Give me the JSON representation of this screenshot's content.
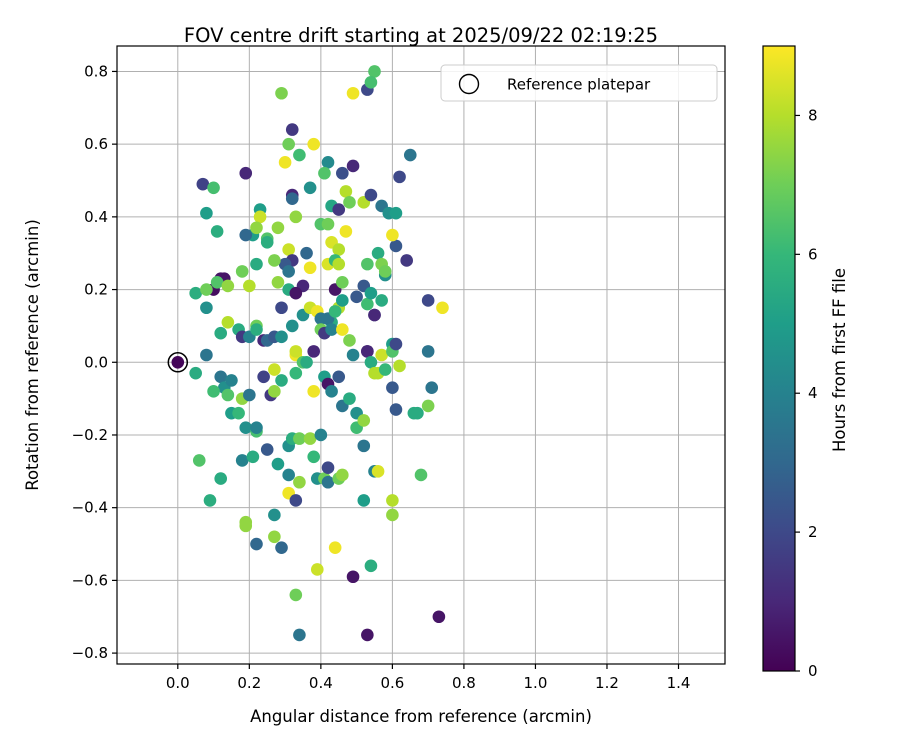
{
  "chart_data": {
    "type": "scatter",
    "title": "FOV centre drift starting at 2025/09/22 02:19:25",
    "xlabel": "Angular distance from reference (arcmin)",
    "ylabel": "Rotation from reference (arcmin)",
    "xlim": [
      -0.17,
      1.53
    ],
    "ylim": [
      -0.83,
      0.87
    ],
    "xticks": [
      0.0,
      0.2,
      0.4,
      0.6,
      0.8,
      1.0,
      1.2,
      1.4
    ],
    "xtick_labels": [
      "0.0",
      "0.2",
      "0.4",
      "0.6",
      "0.8",
      "1.0",
      "1.2",
      "1.4"
    ],
    "yticks": [
      -0.8,
      -0.6,
      -0.4,
      -0.2,
      0.0,
      0.2,
      0.4,
      0.6,
      0.8
    ],
    "ytick_labels": [
      "−0.8",
      "−0.6",
      "−0.4",
      "−0.2",
      "0.0",
      "0.2",
      "0.4",
      "0.6",
      "0.8"
    ],
    "grid": true,
    "legend": {
      "position": "upper-right",
      "entries": [
        "Reference platepar"
      ]
    },
    "reference_point": {
      "x": 0.0,
      "y": 0.0,
      "label": "Reference platepar"
    },
    "colorbar": {
      "label": "Hours from first FF file",
      "colormap": "viridis",
      "range": [
        0,
        9
      ],
      "ticks": [
        0,
        2,
        4,
        6,
        8
      ],
      "tick_labels": [
        "0",
        "2",
        "4",
        "6",
        "8"
      ]
    },
    "colormap_stops": [
      "#440154",
      "#482878",
      "#3e4989",
      "#31688e",
      "#26828e",
      "#1f9e89",
      "#35b779",
      "#6ece58",
      "#b5de2b",
      "#fde725"
    ],
    "points": [
      [
        0.0,
        0.0,
        0.1
      ],
      [
        0.1,
        0.2,
        0.3
      ],
      [
        0.12,
        0.23,
        0.5
      ],
      [
        0.19,
        0.52,
        1.0
      ],
      [
        0.07,
        0.49,
        1.8
      ],
      [
        0.32,
        0.64,
        1.5
      ],
      [
        0.29,
        0.74,
        7.2
      ],
      [
        0.53,
        0.75,
        2.0
      ],
      [
        0.55,
        0.8,
        6.5
      ],
      [
        0.54,
        0.77,
        6.3
      ],
      [
        0.49,
        0.74,
        8.8
      ],
      [
        0.31,
        0.6,
        7.0
      ],
      [
        0.34,
        0.57,
        6.2
      ],
      [
        0.38,
        0.6,
        8.8
      ],
      [
        0.3,
        0.55,
        8.8
      ],
      [
        0.42,
        0.55,
        4.3
      ],
      [
        0.49,
        0.54,
        1.0
      ],
      [
        0.65,
        0.57,
        3.5
      ],
      [
        0.62,
        0.51,
        2.0
      ],
      [
        0.46,
        0.52,
        2.2
      ],
      [
        0.41,
        0.52,
        6.5
      ],
      [
        0.37,
        0.48,
        4.5
      ],
      [
        0.1,
        0.48,
        6.3
      ],
      [
        0.08,
        0.41,
        5.0
      ],
      [
        0.11,
        0.36,
        5.6
      ],
      [
        0.23,
        0.42,
        5.0
      ],
      [
        0.23,
        0.4,
        8.3
      ],
      [
        0.32,
        0.46,
        1.0
      ],
      [
        0.32,
        0.45,
        3.0
      ],
      [
        0.33,
        0.4,
        7.5
      ],
      [
        0.43,
        0.43,
        5.3
      ],
      [
        0.45,
        0.42,
        1.5
      ],
      [
        0.47,
        0.47,
        8.0
      ],
      [
        0.48,
        0.44,
        7.0
      ],
      [
        0.52,
        0.44,
        8.0
      ],
      [
        0.54,
        0.46,
        2.0
      ],
      [
        0.57,
        0.43,
        3.5
      ],
      [
        0.59,
        0.41,
        4.5
      ],
      [
        0.61,
        0.41,
        5.0
      ],
      [
        0.61,
        0.32,
        2.5
      ],
      [
        0.6,
        0.35,
        8.8
      ],
      [
        0.58,
        0.24,
        4.5
      ],
      [
        0.21,
        0.35,
        5.0
      ],
      [
        0.19,
        0.35,
        3.0
      ],
      [
        0.22,
        0.37,
        7.5
      ],
      [
        0.25,
        0.34,
        6.5
      ],
      [
        0.28,
        0.37,
        7.5
      ],
      [
        0.25,
        0.33,
        5.6
      ],
      [
        0.31,
        0.31,
        8.3
      ],
      [
        0.32,
        0.28,
        1.5
      ],
      [
        0.3,
        0.27,
        2.5
      ],
      [
        0.31,
        0.25,
        3.5
      ],
      [
        0.36,
        0.3,
        3.0
      ],
      [
        0.37,
        0.26,
        8.8
      ],
      [
        0.4,
        0.38,
        6.5
      ],
      [
        0.42,
        0.38,
        7.0
      ],
      [
        0.43,
        0.33,
        8.5
      ],
      [
        0.45,
        0.31,
        8.0
      ],
      [
        0.47,
        0.36,
        8.8
      ],
      [
        0.42,
        0.27,
        8.5
      ],
      [
        0.44,
        0.28,
        6.0
      ],
      [
        0.45,
        0.27,
        8.0
      ],
      [
        0.53,
        0.27,
        6.5
      ],
      [
        0.56,
        0.3,
        5.5
      ],
      [
        0.57,
        0.27,
        7.2
      ],
      [
        0.58,
        0.25,
        7.0
      ],
      [
        0.64,
        0.28,
        1.5
      ],
      [
        0.35,
        0.21,
        1.0
      ],
      [
        0.05,
        0.19,
        5.6
      ],
      [
        0.08,
        0.2,
        7.0
      ],
      [
        0.13,
        0.23,
        0.5
      ],
      [
        0.11,
        0.22,
        6.5
      ],
      [
        0.14,
        0.21,
        7.5
      ],
      [
        0.18,
        0.25,
        7.0
      ],
      [
        0.2,
        0.21,
        8.0
      ],
      [
        0.22,
        0.27,
        5.5
      ],
      [
        0.27,
        0.28,
        7.2
      ],
      [
        0.28,
        0.22,
        7.5
      ],
      [
        0.31,
        0.2,
        5.5
      ],
      [
        0.29,
        0.15,
        2.0
      ],
      [
        0.33,
        0.19,
        0.5
      ],
      [
        0.35,
        0.13,
        4.5
      ],
      [
        0.37,
        0.15,
        8.3
      ],
      [
        0.39,
        0.14,
        8.8
      ],
      [
        0.4,
        0.12,
        3.5
      ],
      [
        0.42,
        0.12,
        4.0
      ],
      [
        0.43,
        0.11,
        5.5
      ],
      [
        0.44,
        0.2,
        0.5
      ],
      [
        0.45,
        0.15,
        8.0
      ],
      [
        0.46,
        0.22,
        7.0
      ],
      [
        0.46,
        0.17,
        5.0
      ],
      [
        0.5,
        0.18,
        2.5
      ],
      [
        0.52,
        0.21,
        2.5
      ],
      [
        0.53,
        0.16,
        6.2
      ],
      [
        0.54,
        0.19,
        5.0
      ],
      [
        0.55,
        0.13,
        2.0
      ],
      [
        0.55,
        0.13,
        1.0
      ],
      [
        0.57,
        0.17,
        5.5
      ],
      [
        0.7,
        0.17,
        2.0
      ],
      [
        0.74,
        0.15,
        8.8
      ],
      [
        0.08,
        0.15,
        4.5
      ],
      [
        0.12,
        0.08,
        5.5
      ],
      [
        0.14,
        0.11,
        8.0
      ],
      [
        0.17,
        0.09,
        5.5
      ],
      [
        0.18,
        0.07,
        1.5
      ],
      [
        0.2,
        0.07,
        4.0
      ],
      [
        0.22,
        0.1,
        7.0
      ],
      [
        0.22,
        0.09,
        5.6
      ],
      [
        0.24,
        0.06,
        1.0
      ],
      [
        0.25,
        0.06,
        3.0
      ],
      [
        0.27,
        0.07,
        2.5
      ],
      [
        0.29,
        0.07,
        4.5
      ],
      [
        0.32,
        0.1,
        4.5
      ],
      [
        0.33,
        0.02,
        8.8
      ],
      [
        0.33,
        0.03,
        8.3
      ],
      [
        0.35,
        0.0,
        6.5
      ],
      [
        0.38,
        0.03,
        1.0
      ],
      [
        0.4,
        0.09,
        7.0
      ],
      [
        0.41,
        0.08,
        1.5
      ],
      [
        0.42,
        0.12,
        3.5
      ],
      [
        0.43,
        0.09,
        4.0
      ],
      [
        0.44,
        0.14,
        6.0
      ],
      [
        0.46,
        0.09,
        8.8
      ],
      [
        0.48,
        0.06,
        7.2
      ],
      [
        0.49,
        0.02,
        4.0
      ],
      [
        0.53,
        0.03,
        1.0
      ],
      [
        0.53,
        0.03,
        1.0
      ],
      [
        0.54,
        0.0,
        5.5
      ],
      [
        0.57,
        0.02,
        8.3
      ],
      [
        0.6,
        0.05,
        5.0
      ],
      [
        0.6,
        0.03,
        6.5
      ],
      [
        0.61,
        0.05,
        2.0
      ],
      [
        0.7,
        0.03,
        3.5
      ],
      [
        0.08,
        0.02,
        3.5
      ],
      [
        0.05,
        -0.03,
        5.5
      ],
      [
        0.12,
        -0.04,
        3.5
      ],
      [
        0.13,
        -0.07,
        4.5
      ],
      [
        0.14,
        -0.09,
        6.5
      ],
      [
        0.15,
        -0.05,
        4.0
      ],
      [
        0.1,
        -0.08,
        6.2
      ],
      [
        0.15,
        -0.14,
        5.0
      ],
      [
        0.17,
        -0.14,
        6.0
      ],
      [
        0.18,
        -0.1,
        7.5
      ],
      [
        0.2,
        -0.09,
        3.5
      ],
      [
        0.19,
        -0.18,
        4.5
      ],
      [
        0.22,
        -0.19,
        6.3
      ],
      [
        0.22,
        -0.18,
        4.0
      ],
      [
        0.24,
        -0.04,
        1.8
      ],
      [
        0.26,
        -0.09,
        1.5
      ],
      [
        0.27,
        -0.08,
        7.5
      ],
      [
        0.27,
        -0.02,
        8.3
      ],
      [
        0.29,
        -0.05,
        5.5
      ],
      [
        0.33,
        -0.03,
        6.0
      ],
      [
        0.36,
        0.0,
        5.5
      ],
      [
        0.38,
        -0.08,
        8.8
      ],
      [
        0.41,
        -0.04,
        5.0
      ],
      [
        0.42,
        -0.06,
        0.5
      ],
      [
        0.43,
        -0.08,
        4.0
      ],
      [
        0.45,
        -0.04,
        2.5
      ],
      [
        0.46,
        -0.12,
        3.5
      ],
      [
        0.48,
        -0.1,
        5.5
      ],
      [
        0.5,
        -0.14,
        4.5
      ],
      [
        0.5,
        -0.18,
        6.2
      ],
      [
        0.52,
        -0.16,
        7.5
      ],
      [
        0.52,
        -0.23,
        3.5
      ],
      [
        0.55,
        -0.03,
        8.0
      ],
      [
        0.56,
        -0.03,
        8.0
      ],
      [
        0.58,
        -0.02,
        6.0
      ],
      [
        0.6,
        -0.07,
        2.5
      ],
      [
        0.61,
        -0.13,
        2.5
      ],
      [
        0.62,
        -0.01,
        8.0
      ],
      [
        0.66,
        -0.14,
        5.5
      ],
      [
        0.67,
        -0.14,
        5.5
      ],
      [
        0.7,
        -0.12,
        7.2
      ],
      [
        0.71,
        -0.07,
        3.5
      ],
      [
        0.06,
        -0.27,
        6.5
      ],
      [
        0.12,
        -0.32,
        5.5
      ],
      [
        0.09,
        -0.38,
        5.6
      ],
      [
        0.18,
        -0.27,
        4.0
      ],
      [
        0.21,
        -0.26,
        5.5
      ],
      [
        0.25,
        -0.24,
        2.5
      ],
      [
        0.28,
        -0.28,
        5.0
      ],
      [
        0.31,
        -0.23,
        4.5
      ],
      [
        0.32,
        -0.21,
        5.6
      ],
      [
        0.34,
        -0.21,
        7.0
      ],
      [
        0.37,
        -0.21,
        7.5
      ],
      [
        0.38,
        -0.26,
        6.0
      ],
      [
        0.39,
        -0.32,
        4.5
      ],
      [
        0.4,
        -0.2,
        4.0
      ],
      [
        0.41,
        -0.32,
        7.0
      ],
      [
        0.42,
        -0.33,
        3.5
      ],
      [
        0.42,
        -0.29,
        2.0
      ],
      [
        0.45,
        -0.32,
        7.0
      ],
      [
        0.46,
        -0.31,
        7.5
      ],
      [
        0.55,
        -0.3,
        4.0
      ],
      [
        0.56,
        -0.3,
        8.5
      ],
      [
        0.52,
        -0.38,
        5.0
      ],
      [
        0.6,
        -0.38,
        8.0
      ],
      [
        0.6,
        -0.42,
        7.5
      ],
      [
        0.68,
        -0.31,
        6.5
      ],
      [
        0.31,
        -0.31,
        4.0
      ],
      [
        0.31,
        -0.36,
        8.8
      ],
      [
        0.33,
        -0.38,
        2.0
      ],
      [
        0.34,
        -0.33,
        7.5
      ],
      [
        0.19,
        -0.44,
        7.5
      ],
      [
        0.19,
        -0.45,
        7.5
      ],
      [
        0.22,
        -0.5,
        3.0
      ],
      [
        0.27,
        -0.42,
        4.5
      ],
      [
        0.27,
        -0.48,
        7.5
      ],
      [
        0.29,
        -0.51,
        3.0
      ],
      [
        0.39,
        -0.57,
        8.3
      ],
      [
        0.44,
        -0.51,
        8.8
      ],
      [
        0.54,
        -0.56,
        5.6
      ],
      [
        0.49,
        -0.59,
        0.5
      ],
      [
        0.33,
        -0.64,
        7.0
      ],
      [
        0.34,
        -0.75,
        3.5
      ],
      [
        0.53,
        -0.75,
        0.5
      ],
      [
        0.73,
        -0.7,
        0.5
      ]
    ]
  }
}
